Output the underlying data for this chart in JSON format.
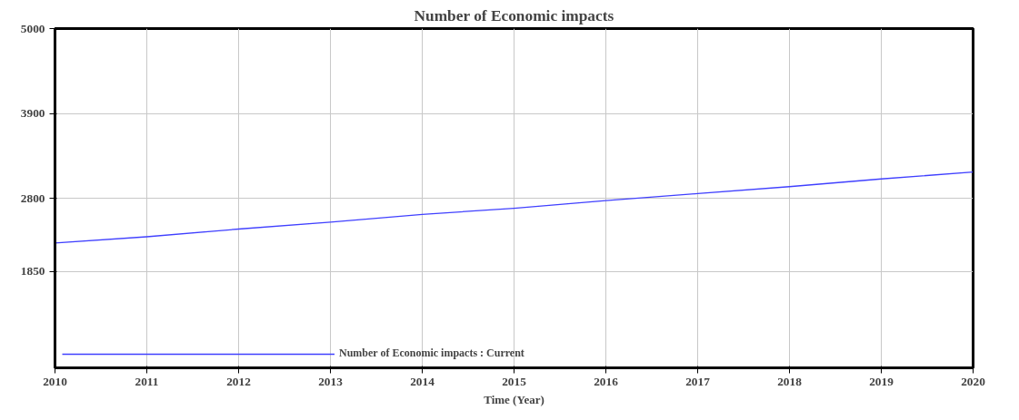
{
  "chart_data": {
    "type": "line",
    "title": "Number of Economic impacts",
    "xlabel": "Time (Year)",
    "x": [
      2010,
      2011,
      2012,
      2013,
      2014,
      2015,
      2016,
      2017,
      2018,
      2019,
      2020
    ],
    "series": [
      {
        "name": "Number of Economic impacts : Current",
        "color": "#4040ff",
        "values": [
          2220,
          2300,
          2400,
          2490,
          2590,
          2670,
          2770,
          2860,
          2950,
          3050,
          3140
        ]
      }
    ],
    "xlim": [
      2010,
      2020
    ],
    "xticks": [
      2010,
      2011,
      2012,
      2013,
      2014,
      2015,
      2016,
      2017,
      2018,
      2019,
      2020
    ],
    "ylim": [
      600,
      5000
    ],
    "yticks": [
      5000,
      3900,
      2800,
      1850
    ],
    "grid": true,
    "legend": "bottom",
    "marker": "none",
    "line_style": "solid"
  }
}
